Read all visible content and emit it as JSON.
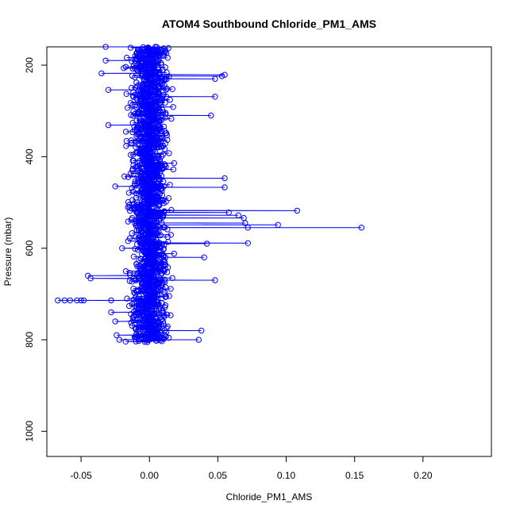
{
  "chart_data": {
    "type": "scatter",
    "title": "ATOM4 Southbound Chloride_PM1_AMS",
    "xlabel": "Chloride_PM1_AMS",
    "ylabel": "Pressure (mbar)",
    "xlim": [
      -0.075,
      0.25
    ],
    "ylim": [
      1055,
      160
    ],
    "y_reversed": true,
    "grid": false,
    "legend": "none",
    "x_ticks": [
      "-0.05",
      "0.00",
      "0.05",
      "0.10",
      "0.15",
      "0.20"
    ],
    "x_tick_values": [
      -0.05,
      0.0,
      0.05,
      0.1,
      0.15,
      0.2
    ],
    "y_ticks": [
      "200",
      "400",
      "600",
      "800",
      "1000"
    ],
    "y_tick_values": [
      200,
      400,
      600,
      800,
      1000
    ],
    "series": [
      {
        "color": "#0000ff",
        "marker": "open-circle",
        "line": true,
        "pressure_range": [
          160,
          805
        ],
        "bulk_center": 0.0,
        "bulk_spread": 0.012,
        "points": [
          {
            "x": 0.155,
            "y": 555
          },
          {
            "x": 0.108,
            "y": 518
          },
          {
            "x": 0.094,
            "y": 549
          },
          {
            "x": 0.072,
            "y": 589
          },
          {
            "x": 0.07,
            "y": 545
          },
          {
            "x": 0.072,
            "y": 555
          },
          {
            "x": 0.069,
            "y": 534
          },
          {
            "x": 0.065,
            "y": 528
          },
          {
            "x": 0.058,
            "y": 522
          },
          {
            "x": 0.055,
            "y": 221
          },
          {
            "x": 0.053,
            "y": 224
          },
          {
            "x": 0.055,
            "y": 447
          },
          {
            "x": 0.055,
            "y": 467
          },
          {
            "x": 0.048,
            "y": 269
          },
          {
            "x": 0.048,
            "y": 670
          },
          {
            "x": 0.048,
            "y": 230
          },
          {
            "x": 0.045,
            "y": 310
          },
          {
            "x": 0.042,
            "y": 590
          },
          {
            "x": 0.04,
            "y": 620
          },
          {
            "x": 0.038,
            "y": 780
          },
          {
            "x": 0.036,
            "y": 800
          },
          {
            "x": -0.067,
            "y": 714
          },
          {
            "x": -0.062,
            "y": 714
          },
          {
            "x": -0.058,
            "y": 714
          },
          {
            "x": -0.053,
            "y": 714
          },
          {
            "x": -0.05,
            "y": 714
          },
          {
            "x": -0.048,
            "y": 714
          },
          {
            "x": -0.045,
            "y": 660
          },
          {
            "x": -0.043,
            "y": 666
          },
          {
            "x": -0.035,
            "y": 218
          },
          {
            "x": -0.032,
            "y": 190
          },
          {
            "x": -0.03,
            "y": 254
          },
          {
            "x": -0.03,
            "y": 331
          },
          {
            "x": -0.032,
            "y": 160
          },
          {
            "x": -0.028,
            "y": 714
          },
          {
            "x": -0.025,
            "y": 465
          },
          {
            "x": -0.028,
            "y": 740
          },
          {
            "x": -0.025,
            "y": 760
          },
          {
            "x": -0.022,
            "y": 800
          },
          {
            "x": -0.024,
            "y": 790
          },
          {
            "x": -0.02,
            "y": 600
          }
        ]
      }
    ]
  }
}
